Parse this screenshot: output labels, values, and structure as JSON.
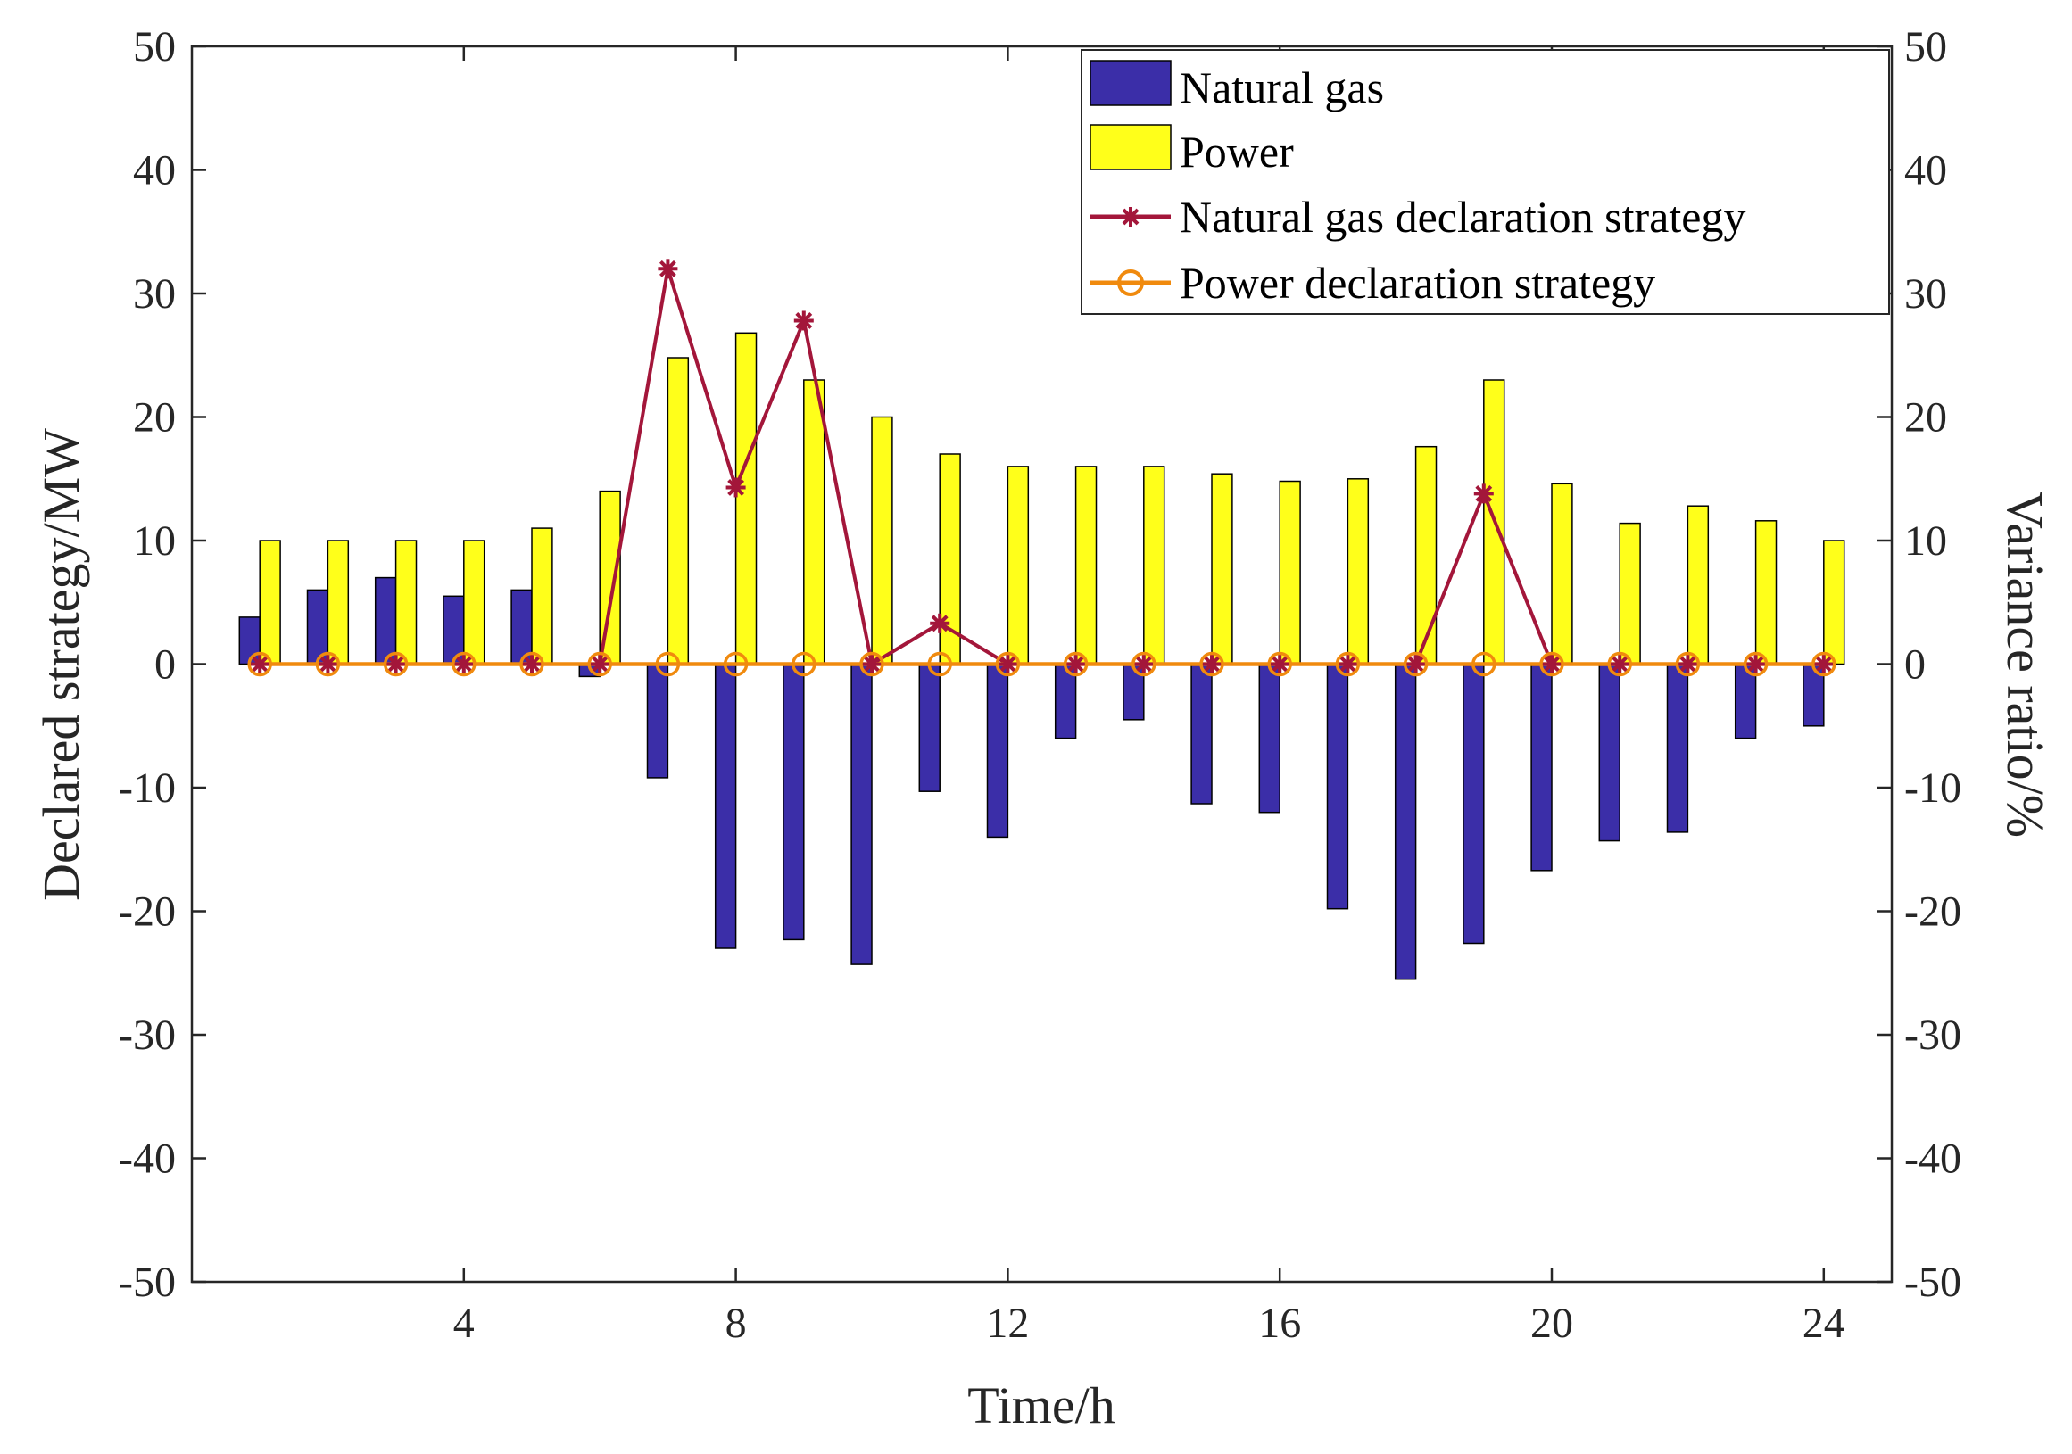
{
  "chart_data": {
    "type": "bar",
    "x": [
      1,
      2,
      3,
      4,
      5,
      6,
      7,
      8,
      9,
      10,
      11,
      12,
      13,
      14,
      15,
      16,
      17,
      18,
      19,
      20,
      21,
      22,
      23,
      24
    ],
    "x_ticks": [
      4,
      8,
      12,
      16,
      20,
      24
    ],
    "xlabel": "Time/h",
    "ylabel_left": "Declared strategy/MW",
    "ylabel_right": "Variance ratio/%",
    "ylim_left": [
      -50,
      50
    ],
    "ylim_right": [
      -50,
      50
    ],
    "y_ticks": [
      -50,
      -40,
      -30,
      -20,
      -10,
      0,
      10,
      20,
      30,
      40,
      50
    ],
    "xlim": [
      0,
      25
    ],
    "legend_position": "top-right",
    "series": [
      {
        "name": "Natural gas",
        "kind": "bar",
        "axis": "left",
        "color": "#3b2ea8",
        "values": [
          3.8,
          6.0,
          7.0,
          5.5,
          6.0,
          -1.0,
          -9.2,
          -23.0,
          -22.3,
          -24.3,
          -10.3,
          -14.0,
          -6.0,
          -4.5,
          -11.3,
          -12.0,
          -19.8,
          -25.5,
          -22.6,
          -16.7,
          -14.3,
          -13.6,
          -6.0,
          -5.0
        ]
      },
      {
        "name": "Power",
        "kind": "bar",
        "axis": "left",
        "color": "#ffff1a",
        "values": [
          10.0,
          10.0,
          10.0,
          10.0,
          11.0,
          14.0,
          24.8,
          26.8,
          23.0,
          20.0,
          17.0,
          16.0,
          16.0,
          16.0,
          15.4,
          14.8,
          15.0,
          17.6,
          23.0,
          14.6,
          11.4,
          12.8,
          11.6,
          10.0
        ]
      },
      {
        "name": "Natural gas declaration strategy",
        "kind": "line",
        "marker": "asterisk",
        "axis": "right",
        "color": "#a3163a",
        "values": [
          0,
          0,
          0,
          0,
          0,
          0,
          32.0,
          14.3,
          27.8,
          0,
          3.3,
          0,
          0,
          0,
          0,
          0,
          0,
          0,
          13.8,
          0,
          0,
          0,
          0,
          0
        ]
      },
      {
        "name": "Power declaration strategy",
        "kind": "line",
        "marker": "circle",
        "axis": "right",
        "color": "#f08a0e",
        "values": [
          0,
          0,
          0,
          0,
          0,
          0,
          0,
          0,
          0,
          0,
          0,
          0,
          0,
          0,
          0,
          0,
          0,
          0,
          0,
          0,
          0,
          0,
          0,
          0
        ]
      }
    ]
  }
}
